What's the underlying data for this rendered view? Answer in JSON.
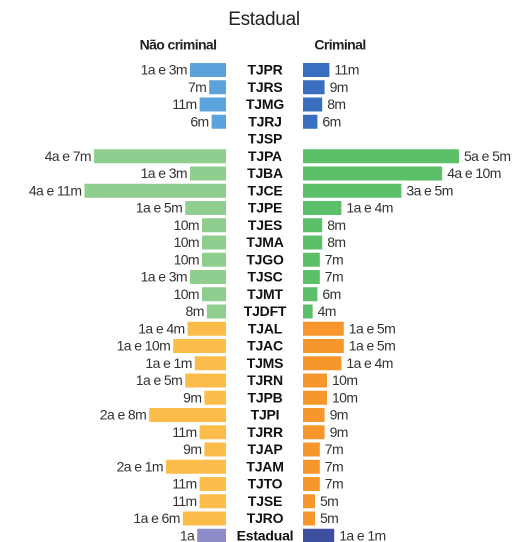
{
  "chart_data": {
    "type": "butterfly",
    "title": "Estadual",
    "categories": [
      "TJPR",
      "TJRS",
      "TJMG",
      "TJRJ",
      "TJSP",
      "TJPA",
      "TJBA",
      "TJCE",
      "TJPE",
      "TJES",
      "TJMA",
      "TJGO",
      "TJSC",
      "TJMT",
      "TJDFT",
      "TJAL",
      "TJAC",
      "TJMS",
      "TJRN",
      "TJPB",
      "TJPI",
      "TJRR",
      "TJAP",
      "TJAM",
      "TJTO",
      "TJSE",
      "TJRO",
      "Estadual"
    ],
    "series": [
      {
        "name": "Não criminal",
        "values": [
          15,
          7,
          11,
          6,
          null,
          55,
          15,
          59,
          17,
          10,
          10,
          10,
          15,
          10,
          8,
          16,
          22,
          13,
          17,
          9,
          32,
          11,
          9,
          25,
          11,
          11,
          18,
          12
        ],
        "value_labels": [
          "1a e 3m",
          "7m",
          "11m",
          "6m",
          null,
          "4a e 7m",
          "1a e 3m",
          "4a e 11m",
          "1a e 5m",
          "10m",
          "10m",
          "10m",
          "1a e 3m",
          "10m",
          "8m",
          "1a e 4m",
          "1a e 10m",
          "1a e 1m",
          "1a e 5m",
          "9m",
          "2a e 8m",
          "11m",
          "9m",
          "2a e 1m",
          "11m",
          "11m",
          "1a e 6m",
          "1a"
        ],
        "colors": [
          "#5ba3dc",
          "#5ba3dc",
          "#5ba3dc",
          "#5ba3dc",
          "#8fce8f",
          "#8fce8f",
          "#8fce8f",
          "#8fce8f",
          "#8fce8f",
          "#8fce8f",
          "#8fce8f",
          "#8fce8f",
          "#8fce8f",
          "#8fce8f",
          "#8fce8f",
          "#fbbc4a",
          "#fbbc4a",
          "#fbbc4a",
          "#fbbc4a",
          "#fbbc4a",
          "#fbbc4a",
          "#fbbc4a",
          "#fbbc4a",
          "#fbbc4a",
          "#fbbc4a",
          "#fbbc4a",
          "#fbbc4a",
          "#8c8cc8"
        ]
      },
      {
        "name": "Criminal",
        "values": [
          11,
          9,
          8,
          6,
          null,
          65,
          58,
          41,
          16,
          8,
          8,
          7,
          7,
          6,
          4,
          17,
          17,
          16,
          10,
          10,
          9,
          9,
          7,
          7,
          7,
          5,
          5,
          13
        ],
        "value_labels": [
          "11m",
          "9m",
          "8m",
          "6m",
          null,
          "5a e 5m",
          "4a e 10m",
          "3a e 5m",
          "1a e 4m",
          "8m",
          "8m",
          "7m",
          "7m",
          "6m",
          "4m",
          "1a e 5m",
          "1a e 5m",
          "1a e 4m",
          "10m",
          "10m",
          "9m",
          "9m",
          "7m",
          "7m",
          "7m",
          "5m",
          "5m",
          "1a e 1m"
        ],
        "colors": [
          "#3a6fc0",
          "#3a6fc0",
          "#3a6fc0",
          "#3a6fc0",
          "#5cbf6a",
          "#5cbf6a",
          "#5cbf6a",
          "#5cbf6a",
          "#5cbf6a",
          "#5cbf6a",
          "#5cbf6a",
          "#5cbf6a",
          "#5cbf6a",
          "#5cbf6a",
          "#5cbf6a",
          "#f7962a",
          "#f7962a",
          "#f7962a",
          "#f7962a",
          "#f7962a",
          "#f7962a",
          "#f7962a",
          "#f7962a",
          "#f7962a",
          "#f7962a",
          "#f7962a",
          "#f7962a",
          "#3f4fa0"
        ]
      }
    ]
  }
}
